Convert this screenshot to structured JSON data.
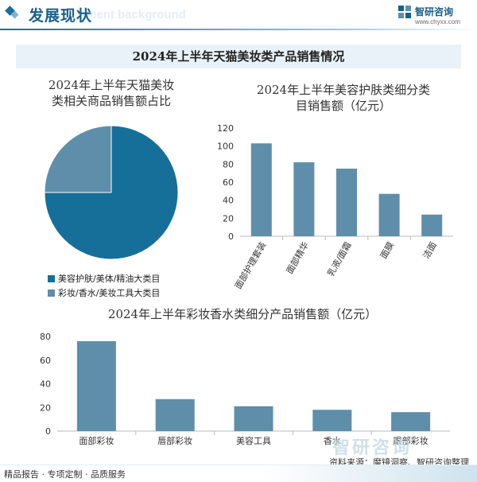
{
  "header": {
    "title": "发展现状",
    "subtitle": "ment background",
    "brand_name": "智研咨询",
    "brand_url": "www.chyxx.com"
  },
  "banner_title": "2024年上半年天猫美妆类产品销售情况",
  "pie": {
    "title_line1": "2024年上半年天猫美妆",
    "title_line2": "类相关商品销售额占比"
  },
  "bar1": {
    "title_line1": "2024年上半年美容护肤类细分类",
    "title_line2": "目销售额（亿元）"
  },
  "bar2": {
    "title": "2024年上半年彩妆香水类细分产品销售额（亿元）"
  },
  "footer": {
    "left": "精品报告 · 专项定制 · 品质服务",
    "source": "资料来源：魔镜洞察、智研咨询整理",
    "watermark": "智研咨询"
  },
  "chart_data": [
    {
      "type": "pie",
      "title": "2024年上半年天猫美妆类相关商品销售额占比",
      "labels": [
        "美容护肤/美体/精油大类目",
        "彩妆/香水/美妆工具大类目"
      ],
      "values": [
        75,
        25
      ],
      "colors": [
        "#166f99",
        "#5e8ea9"
      ],
      "legend": "bottom-left"
    },
    {
      "type": "bar",
      "title": "2024年上半年美容护肤类细分类目销售额（亿元）",
      "categories": [
        "面部护理套装",
        "面部精华",
        "乳液/面霜",
        "面膜",
        "洁面"
      ],
      "values": [
        103,
        82,
        75,
        47,
        24
      ],
      "ylim": [
        0,
        120
      ],
      "yticks": [
        0,
        20,
        40,
        60,
        80,
        100,
        120
      ],
      "color": "#5e8ea9",
      "grid": false
    },
    {
      "type": "bar",
      "title": "2024年上半年彩妆香水类细分产品销售额（亿元）",
      "categories": [
        "面部彩妆",
        "唇部彩妆",
        "美容工具",
        "香水",
        "眼部彩妆"
      ],
      "values": [
        76,
        27,
        21,
        18,
        16
      ],
      "ylim": [
        0,
        80
      ],
      "yticks": [
        0,
        20,
        40,
        60,
        80
      ],
      "color": "#5e8ea9",
      "grid": false
    }
  ]
}
